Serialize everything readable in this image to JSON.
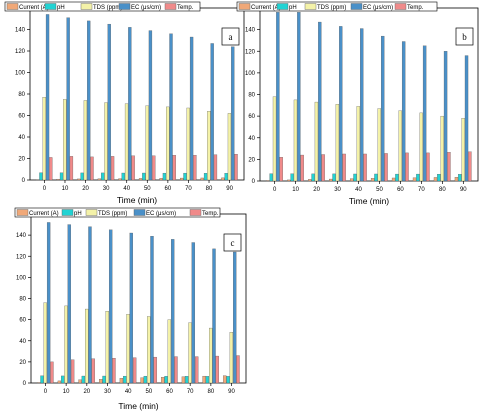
{
  "chart_data": [
    {
      "type": "bar",
      "panel_label": "a",
      "xlabel": "Time (min)",
      "ylabel": "",
      "ylim": [
        0,
        160
      ],
      "yticks": [
        0,
        20,
        40,
        60,
        80,
        100,
        120,
        140,
        160
      ],
      "categories": [
        "0",
        "10",
        "20",
        "30",
        "40",
        "50",
        "60",
        "70",
        "80",
        "90"
      ],
      "legend_position": "top",
      "series": [
        {
          "name": "Current (A)",
          "color": "#f0a878",
          "values": [
            0.4,
            0.8,
            1.0,
            1.2,
            1.3,
            1.5,
            1.6,
            1.8,
            1.9,
            2.0
          ]
        },
        {
          "name": "pH",
          "color": "#22d3d3",
          "values": [
            6.8,
            6.7,
            6.6,
            6.6,
            6.5,
            6.5,
            6.4,
            6.4,
            6.3,
            6.3
          ]
        },
        {
          "name": "TDS (ppm)",
          "color": "#f4f2a8",
          "values": [
            77,
            75,
            74,
            72,
            71,
            69,
            68,
            67,
            64,
            62
          ]
        },
        {
          "name": "EC (μs/cm)",
          "color": "#4a90c8",
          "values": [
            154,
            151,
            148,
            145,
            142,
            139,
            136,
            133,
            127,
            124
          ]
        },
        {
          "name": "Temp.",
          "color": "#f08a8a",
          "values": [
            21,
            22,
            21.5,
            22,
            22.5,
            22.5,
            23,
            23,
            23.5,
            24
          ]
        }
      ]
    },
    {
      "type": "bar",
      "panel_label": "b",
      "xlabel": "Time (min)",
      "ylabel": "",
      "ylim": [
        0,
        160
      ],
      "yticks": [
        0,
        20,
        40,
        60,
        80,
        100,
        120,
        140,
        160
      ],
      "categories": [
        "0",
        "10",
        "20",
        "30",
        "40",
        "50",
        "60",
        "70",
        "80",
        "90"
      ],
      "legend_position": "top",
      "series": [
        {
          "name": "Current (A)",
          "color": "#f0a878",
          "values": [
            0.5,
            1.0,
            1.5,
            1.8,
            2.2,
            2.5,
            2.8,
            3.0,
            3.3,
            3.5
          ]
        },
        {
          "name": "pH",
          "color": "#22d3d3",
          "values": [
            6.8,
            6.7,
            6.6,
            6.6,
            6.5,
            6.5,
            6.4,
            6.4,
            6.3,
            6.2
          ]
        },
        {
          "name": "TDS (ppm)",
          "color": "#f4f2a8",
          "values": [
            78,
            75,
            73,
            71,
            69,
            67,
            65,
            63,
            60,
            58
          ]
        },
        {
          "name": "EC (μs/cm)",
          "color": "#4a90c8",
          "values": [
            156,
            156,
            147,
            143,
            141,
            134,
            129,
            125,
            120,
            116
          ]
        },
        {
          "name": "Temp.",
          "color": "#f08a8a",
          "values": [
            22,
            24,
            24.5,
            25,
            25,
            25.5,
            26,
            26,
            26.5,
            27
          ]
        }
      ]
    },
    {
      "type": "bar",
      "panel_label": "c",
      "xlabel": "Time (min)",
      "ylabel": "",
      "ylim": [
        0,
        160
      ],
      "yticks": [
        0,
        20,
        40,
        60,
        80,
        100,
        120,
        140,
        160
      ],
      "categories": [
        "0",
        "10",
        "20",
        "30",
        "40",
        "50",
        "60",
        "70",
        "80",
        "90"
      ],
      "legend_position": "top",
      "series": [
        {
          "name": "Current (A)",
          "color": "#f0a878",
          "values": [
            0.5,
            2.0,
            3.0,
            3.5,
            4.5,
            5.0,
            5.5,
            6.0,
            6.5,
            7.0
          ]
        },
        {
          "name": "pH",
          "color": "#22d3d3",
          "values": [
            6.8,
            6.7,
            6.6,
            6.6,
            6.5,
            6.5,
            6.4,
            6.4,
            6.3,
            6.3
          ]
        },
        {
          "name": "TDS (ppm)",
          "color": "#f4f2a8",
          "values": [
            76,
            73,
            70,
            68,
            65,
            63,
            60,
            57,
            52,
            48
          ]
        },
        {
          "name": "EC (μs/cm)",
          "color": "#4a90c8",
          "values": [
            152,
            150,
            148,
            145,
            142,
            139,
            136,
            133,
            127,
            124
          ]
        },
        {
          "name": "Temp.",
          "color": "#f08a8a",
          "values": [
            20,
            22,
            23,
            23.5,
            24,
            24.5,
            25,
            25,
            25.5,
            26
          ]
        }
      ]
    }
  ]
}
